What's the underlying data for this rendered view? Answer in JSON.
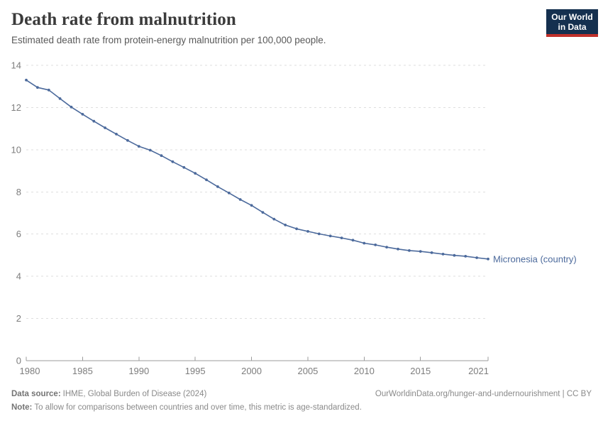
{
  "header": {
    "title": "Death rate from malnutrition",
    "subtitle": "Estimated death rate from protein-energy malnutrition per 100,000 people."
  },
  "logo": {
    "line1": "Our World",
    "line2": "in Data"
  },
  "chart_data": {
    "type": "line",
    "title": "Death rate from malnutrition",
    "xlabel": "",
    "ylabel": "",
    "xlim": [
      1980,
      2021
    ],
    "ylim": [
      0,
      14
    ],
    "xticks": [
      1980,
      1985,
      1990,
      1995,
      2000,
      2005,
      2010,
      2015,
      2021
    ],
    "yticks": [
      0,
      2,
      4,
      6,
      8,
      10,
      12,
      14
    ],
    "grid": "horizontal-dashed",
    "legend_position": "end-of-line-label",
    "series": [
      {
        "name": "Micronesia (country)",
        "color": "#4c6a9c",
        "x": [
          1980,
          1981,
          1982,
          1983,
          1984,
          1985,
          1986,
          1987,
          1988,
          1989,
          1990,
          1991,
          1992,
          1993,
          1994,
          1995,
          1996,
          1997,
          1998,
          1999,
          2000,
          2001,
          2002,
          2003,
          2004,
          2005,
          2006,
          2007,
          2008,
          2009,
          2010,
          2011,
          2012,
          2013,
          2014,
          2015,
          2016,
          2017,
          2018,
          2019,
          2020,
          2021
        ],
        "values": [
          13.3,
          12.95,
          12.83,
          12.42,
          12.02,
          11.68,
          11.35,
          11.04,
          10.74,
          10.44,
          10.16,
          9.98,
          9.72,
          9.43,
          9.16,
          8.88,
          8.57,
          8.25,
          7.95,
          7.64,
          7.36,
          7.03,
          6.71,
          6.43,
          6.25,
          6.13,
          6.01,
          5.91,
          5.82,
          5.71,
          5.57,
          5.49,
          5.38,
          5.29,
          5.22,
          5.18,
          5.12,
          5.05,
          4.99,
          4.95,
          4.88,
          4.82
        ]
      }
    ]
  },
  "footer": {
    "datasource_label": "Data source:",
    "datasource_value": "IHME, Global Burden of Disease (2024)",
    "link_text": "OurWorldinData.org/hunger-and-undernourishment | CC BY",
    "note_label": "Note:",
    "note_value": "To allow for comparisons between countries and over time, this metric is age-standardized."
  },
  "colors": {
    "line": "#4c6a9c",
    "grid": "#dedede",
    "axis": "#9b9b9b",
    "tick_label": "#7d7d7d",
    "logo_bg": "#15304f",
    "logo_accent": "#c0312b"
  }
}
